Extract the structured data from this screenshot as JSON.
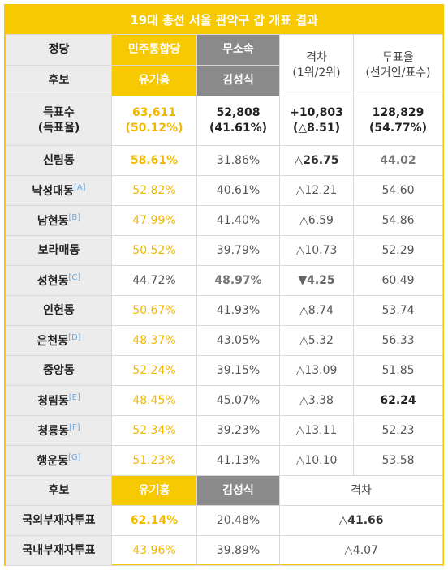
{
  "title": "19대 총선 서울 관악구 갑 개표 결과",
  "header": {
    "party_label": "정당",
    "party1": "민주통합당",
    "party2": "무소속",
    "gap": "격차\n(1위/2위)",
    "turnout": "투표율\n(선거인/표수)",
    "cand_label": "후보",
    "cand1": "유기홍",
    "cand2": "김성식"
  },
  "summary": {
    "label": "득표수\n(득표율)",
    "c1": "63,611\n(50.12%)",
    "c2": "52,808\n(41.61%)",
    "gap": "+10,803\n(△8.51)",
    "turnout": "128,829\n(54.77%)"
  },
  "districts": [
    {
      "name": "신림동",
      "note": "",
      "c1": "58.61%",
      "c2": "31.86%",
      "gap": "△26.75",
      "turnout": "44.02",
      "c1_style": "yb",
      "c2_style": "g",
      "gap_style": "markb",
      "turn_style": "gb"
    },
    {
      "name": "낙성대동",
      "note": "[A]",
      "c1": "52.82%",
      "c2": "40.61%",
      "gap": "△12.21",
      "turnout": "54.60",
      "c1_style": "y",
      "c2_style": "g",
      "gap_style": "mark",
      "turn_style": "g"
    },
    {
      "name": "남현동",
      "note": "[B]",
      "c1": "47.99%",
      "c2": "41.40%",
      "gap": "△6.59",
      "turnout": "54.86",
      "c1_style": "y",
      "c2_style": "g",
      "gap_style": "mark",
      "turn_style": "g"
    },
    {
      "name": "보라매동",
      "note": "",
      "c1": "50.52%",
      "c2": "39.79%",
      "gap": "△10.73",
      "turnout": "52.29",
      "c1_style": "y",
      "c2_style": "g",
      "gap_style": "mark",
      "turn_style": "g"
    },
    {
      "name": "성현동",
      "note": "[C]",
      "c1": "44.72%",
      "c2": "48.97%",
      "gap": "▼4.25",
      "turnout": "60.49",
      "c1_style": "g",
      "c2_style": "gb",
      "gap_style": "gray2",
      "turn_style": "g"
    },
    {
      "name": "인헌동",
      "note": "",
      "c1": "50.67%",
      "c2": "41.93%",
      "gap": "△8.74",
      "turnout": "53.74",
      "c1_style": "y",
      "c2_style": "g",
      "gap_style": "mark",
      "turn_style": "g"
    },
    {
      "name": "은천동",
      "note": "[D]",
      "c1": "48.37%",
      "c2": "43.05%",
      "gap": "△5.32",
      "turnout": "56.33",
      "c1_style": "y",
      "c2_style": "g",
      "gap_style": "mark",
      "turn_style": "g"
    },
    {
      "name": "중앙동",
      "note": "",
      "c1": "52.24%",
      "c2": "39.15%",
      "gap": "△13.09",
      "turnout": "51.85",
      "c1_style": "y",
      "c2_style": "g",
      "gap_style": "mark",
      "turn_style": "g"
    },
    {
      "name": "청림동",
      "note": "[E]",
      "c1": "48.45%",
      "c2": "45.07%",
      "gap": "△3.38",
      "turnout": "62.24",
      "c1_style": "y",
      "c2_style": "g",
      "gap_style": "mark",
      "turn_style": "b"
    },
    {
      "name": "청룡동",
      "note": "[F]",
      "c1": "52.34%",
      "c2": "39.23%",
      "gap": "△13.11",
      "turnout": "52.23",
      "c1_style": "y",
      "c2_style": "g",
      "gap_style": "mark",
      "turn_style": "g"
    },
    {
      "name": "행운동",
      "note": "[G]",
      "c1": "51.23%",
      "c2": "41.13%",
      "gap": "△10.10",
      "turnout": "53.58",
      "c1_style": "y",
      "c2_style": "g",
      "gap_style": "mark",
      "turn_style": "g"
    }
  ],
  "footer_header": {
    "label": "후보",
    "cand1": "유기홍",
    "cand2": "김성식",
    "gap": "격차"
  },
  "absentee": [
    {
      "name": "국외부재자투표",
      "c1": "62.14%",
      "c2": "20.48%",
      "gap": "△41.66",
      "c1_style": "yb",
      "gap_style": "markb"
    },
    {
      "name": "국내부재자투표",
      "c1": "43.96%",
      "c2": "39.89%",
      "gap": "△4.07",
      "c1_style": "y",
      "gap_style": "mark"
    }
  ],
  "colors": {
    "accent": "#f6c900",
    "independent": "#8a8a8a",
    "label_bg": "#ececec",
    "note": "#6fa8dc"
  }
}
